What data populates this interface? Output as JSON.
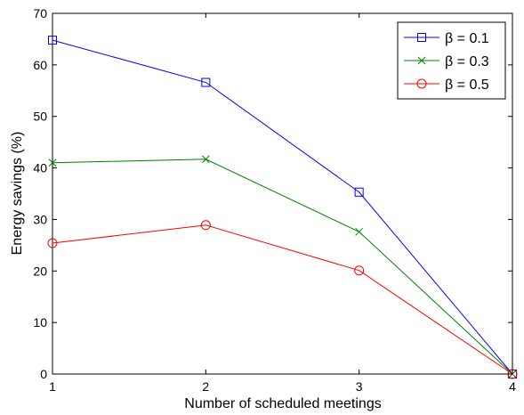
{
  "chart_data": {
    "type": "line",
    "title": "",
    "xlabel": "Number of scheduled meetings",
    "ylabel": "Energy savings (%)",
    "x": [
      1,
      2,
      3,
      4
    ],
    "xlim": [
      1,
      4
    ],
    "ylim": [
      0,
      70
    ],
    "xticks": [
      "1",
      "2",
      "3",
      "4"
    ],
    "yticks": [
      "0",
      "10",
      "20",
      "30",
      "40",
      "50",
      "60",
      "70"
    ],
    "grid": false,
    "legend_position": "top-right",
    "series": [
      {
        "name": "β = 0.1",
        "values": [
          64.8,
          56.6,
          35.3,
          0
        ],
        "color": "#0000ff",
        "marker": "square"
      },
      {
        "name": "β = 0.3",
        "values": [
          41.0,
          41.7,
          27.6,
          0
        ],
        "color": "#008000",
        "marker": "x"
      },
      {
        "name": "β = 0.5",
        "values": [
          25.4,
          28.9,
          20.1,
          0
        ],
        "color": "#ff0000",
        "marker": "circle"
      }
    ]
  }
}
